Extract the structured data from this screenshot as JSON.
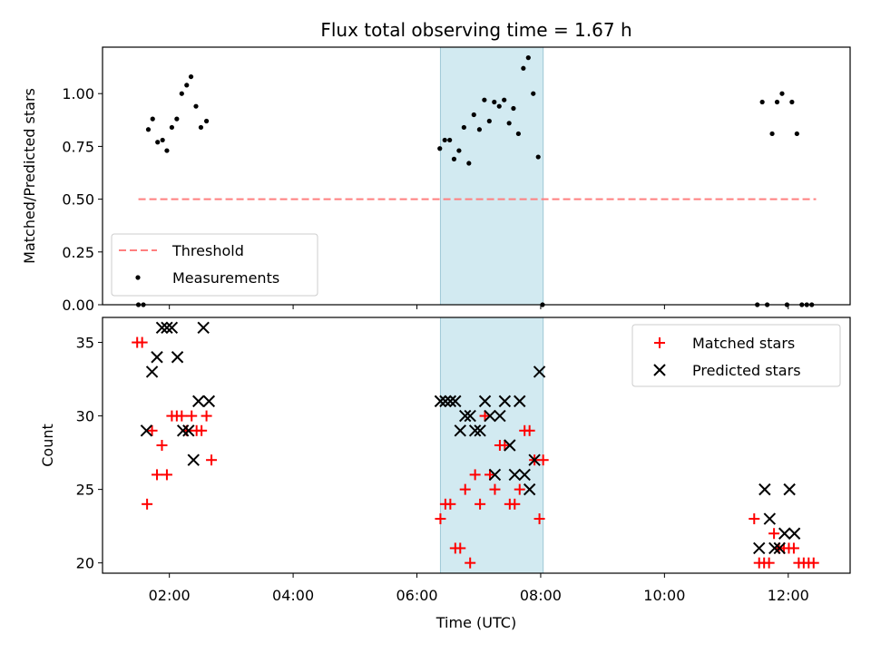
{
  "chart_data": {
    "type": "scatter",
    "title": "Flux total observing time = 1.67 h",
    "xlabel": "Time (UTC)",
    "x_unit": "hours UTC",
    "xlim": [
      0.92,
      13.0
    ],
    "x_ticks": [
      {
        "value": 2,
        "label": "02:00"
      },
      {
        "value": 4,
        "label": "04:00"
      },
      {
        "value": 6,
        "label": "06:00"
      },
      {
        "value": 8,
        "label": "08:00"
      },
      {
        "value": 10,
        "label": "10:00"
      },
      {
        "value": 12,
        "label": "12:00"
      }
    ],
    "shaded_interval": {
      "x_start": 6.38,
      "x_end": 8.04,
      "color": "#add8e6"
    },
    "colors": {
      "threshold": "#ff7f7f",
      "measurements": "#000000",
      "matched": "#ff0000",
      "predicted": "#000000",
      "shade": "#add8e6"
    },
    "top_panel": {
      "ylabel": "Matched/Predicted stars",
      "ylim": [
        0.0,
        1.22
      ],
      "y_ticks": [
        "0.00",
        "0.25",
        "0.50",
        "0.75",
        "1.00"
      ],
      "legend": {
        "position": "lower-left",
        "entries": [
          "Threshold",
          "Measurements"
        ]
      },
      "threshold": {
        "name": "Threshold",
        "value": 0.5,
        "x_range": [
          1.5,
          12.45
        ]
      },
      "measurements": {
        "name": "Measurements",
        "x": [
          1.5,
          1.58,
          1.66,
          1.73,
          1.81,
          1.89,
          1.96,
          2.04,
          2.12,
          2.2,
          2.28,
          2.35,
          2.43,
          2.51,
          2.6,
          6.37,
          6.45,
          6.53,
          6.6,
          6.68,
          6.76,
          6.84,
          6.92,
          7.01,
          7.09,
          7.17,
          7.25,
          7.33,
          7.41,
          7.49,
          7.56,
          7.64,
          7.72,
          7.8,
          7.88,
          7.96,
          8.03,
          11.5,
          11.58,
          11.66,
          11.74,
          11.82,
          11.9,
          11.98,
          12.06,
          12.14,
          12.22,
          12.3,
          12.38
        ],
        "y": [
          0.0,
          0.0,
          0.83,
          0.88,
          0.77,
          0.78,
          0.73,
          0.84,
          0.88,
          1.0,
          1.04,
          1.08,
          0.94,
          0.84,
          0.87,
          0.74,
          0.78,
          0.78,
          0.69,
          0.73,
          0.84,
          0.67,
          0.9,
          0.83,
          0.97,
          0.87,
          0.96,
          0.94,
          0.97,
          0.86,
          0.93,
          0.81,
          1.12,
          1.17,
          1.0,
          0.7,
          0.0,
          0.0,
          0.96,
          0.0,
          0.81,
          0.96,
          1.0,
          0.0,
          0.96,
          0.81,
          0.0,
          0.0,
          0.0
        ]
      }
    },
    "bottom_panel": {
      "ylabel": "Count",
      "ylim": [
        19.3,
        36.7
      ],
      "y_ticks": [
        "20",
        "25",
        "30",
        "35"
      ],
      "legend": {
        "position": "top-right",
        "entries": [
          "Matched stars",
          "Predicted stars"
        ]
      },
      "series": [
        {
          "name": "Matched stars",
          "marker": "plus",
          "x": [
            1.48,
            1.56,
            1.64,
            1.72,
            1.8,
            1.88,
            1.96,
            2.04,
            2.12,
            2.2,
            2.28,
            2.36,
            2.44,
            2.52,
            2.6,
            2.68,
            6.38,
            6.46,
            6.54,
            6.62,
            6.7,
            6.78,
            6.86,
            6.94,
            7.02,
            7.1,
            7.18,
            7.26,
            7.34,
            7.42,
            7.5,
            7.58,
            7.66,
            7.74,
            7.82,
            7.9,
            7.98,
            8.04,
            11.45,
            11.53,
            11.61,
            11.69,
            11.77,
            11.85,
            11.93,
            12.01,
            12.09,
            12.17,
            12.25,
            12.33,
            12.41
          ],
          "y": [
            35,
            35,
            24,
            29,
            26,
            28,
            26,
            30,
            30,
            30,
            29,
            30,
            29,
            29,
            30,
            27,
            23,
            24,
            24,
            21,
            21,
            25,
            20,
            26,
            24,
            30,
            26,
            25,
            28,
            28,
            24,
            24,
            25,
            29,
            29,
            27,
            23,
            27,
            23,
            20,
            20,
            20,
            22,
            21,
            21,
            21,
            21,
            20,
            20,
            20,
            20
          ]
        },
        {
          "name": "Predicted stars",
          "marker": "x",
          "x": [
            1.63,
            1.72,
            1.8,
            1.88,
            1.96,
            2.04,
            2.13,
            2.22,
            2.31,
            2.39,
            2.47,
            2.55,
            2.64,
            6.38,
            6.46,
            6.54,
            6.62,
            6.7,
            6.78,
            6.86,
            6.94,
            7.02,
            7.1,
            7.18,
            7.26,
            7.34,
            7.42,
            7.5,
            7.58,
            7.66,
            7.74,
            7.82,
            7.9,
            7.98,
            11.53,
            11.62,
            11.7,
            11.78,
            11.86,
            11.94,
            12.02,
            12.1
          ],
          "y": [
            29,
            33,
            34,
            36,
            36,
            36,
            34,
            29,
            29,
            27,
            31,
            36,
            31,
            31,
            31,
            31,
            31,
            29,
            30,
            30,
            29,
            29,
            31,
            30,
            26,
            30,
            31,
            28,
            26,
            31,
            26,
            25,
            27,
            33,
            21,
            25,
            23,
            21,
            21,
            22,
            25,
            22
          ]
        }
      ]
    }
  }
}
